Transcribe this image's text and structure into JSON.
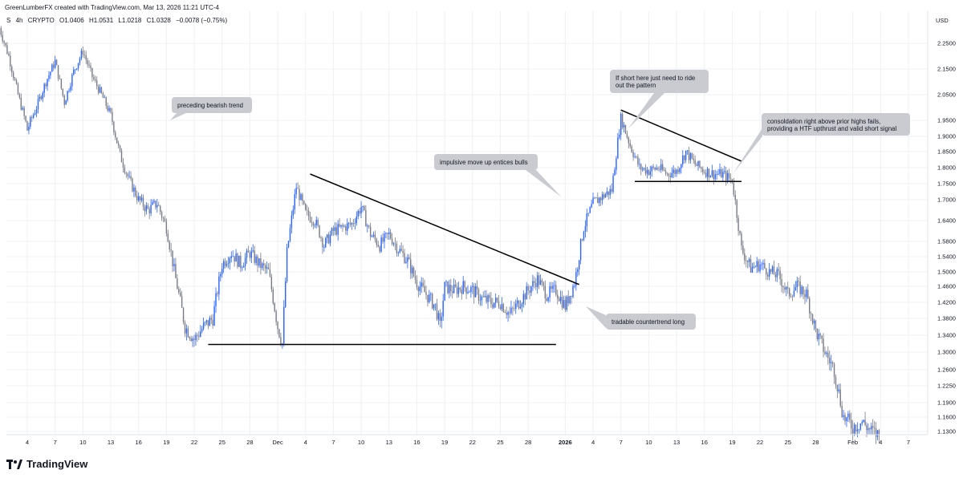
{
  "header": {
    "attribution": "GreenLumberFX created with TradingView.com, Mar 13, 2026 11:21 UTC-4",
    "symbol": "S",
    "interval": "4h",
    "exchange": "CRYPTO",
    "open": "O1.0406",
    "high": "H1.0531",
    "low": "L1.0218",
    "close": "C1.0328",
    "change": "−0.0078 (−0.75%)"
  },
  "currency_label": "USD",
  "brand": "TradingView",
  "colors": {
    "up": "#2962ff",
    "down": "#787b86",
    "line": "#000000",
    "bubble": "#c9cbd1",
    "axis_text": "#131722",
    "grid": "#eef0f3"
  },
  "chart_data": {
    "type": "candlestick",
    "ylim": [
      1.11,
      2.32
    ],
    "y_ticks": [
      "2.2500",
      "2.1500",
      "2.0500",
      "1.9500",
      "1.9000",
      "1.8500",
      "1.8000",
      "1.7500",
      "1.7000",
      "1.6400",
      "1.5800",
      "1.5400",
      "1.5000",
      "1.4600",
      "1.4200",
      "1.3800",
      "1.3400",
      "1.3000",
      "1.2600",
      "1.2250",
      "1.1900",
      "1.1600",
      "1.1300"
    ],
    "y_tick_values": [
      2.25,
      2.15,
      2.05,
      1.95,
      1.9,
      1.85,
      1.8,
      1.75,
      1.7,
      1.64,
      1.58,
      1.54,
      1.5,
      1.46,
      1.42,
      1.38,
      1.34,
      1.3,
      1.26,
      1.225,
      1.19,
      1.16,
      1.13
    ],
    "x_ticks": [
      {
        "label": "4",
        "day": 4
      },
      {
        "label": "7",
        "day": 7
      },
      {
        "label": "10",
        "day": 10
      },
      {
        "label": "13",
        "day": 13
      },
      {
        "label": "16",
        "day": 16
      },
      {
        "label": "19",
        "day": 19
      },
      {
        "label": "22",
        "day": 22
      },
      {
        "label": "25",
        "day": 25
      },
      {
        "label": "28",
        "day": 28
      },
      {
        "label": "Dec",
        "day": 31
      },
      {
        "label": "4",
        "day": 34
      },
      {
        "label": "7",
        "day": 37
      },
      {
        "label": "10",
        "day": 40
      },
      {
        "label": "13",
        "day": 43
      },
      {
        "label": "16",
        "day": 46
      },
      {
        "label": "19",
        "day": 49
      },
      {
        "label": "22",
        "day": 52
      },
      {
        "label": "25",
        "day": 55
      },
      {
        "label": "28",
        "day": 58
      },
      {
        "label": "2026",
        "day": 62
      },
      {
        "label": "4",
        "day": 65
      },
      {
        "label": "7",
        "day": 68
      },
      {
        "label": "10",
        "day": 71
      },
      {
        "label": "13",
        "day": 74
      },
      {
        "label": "16",
        "day": 77
      },
      {
        "label": "19",
        "day": 80
      },
      {
        "label": "22",
        "day": 83
      },
      {
        "label": "25",
        "day": 86
      },
      {
        "label": "28",
        "day": 89
      },
      {
        "label": "Feb",
        "day": 93
      },
      {
        "label": "4",
        "day": 96
      },
      {
        "label": "7",
        "day": 99
      }
    ],
    "xlim": [
      1,
      103
    ],
    "price_path": [
      [
        1,
        2.31
      ],
      [
        2,
        2.2
      ],
      [
        3,
        2.05
      ],
      [
        4,
        1.92
      ],
      [
        5,
        2.0
      ],
      [
        6,
        2.1
      ],
      [
        7,
        2.18
      ],
      [
        8,
        2.02
      ],
      [
        9,
        2.14
      ],
      [
        10,
        2.22
      ],
      [
        11,
        2.12
      ],
      [
        12,
        2.05
      ],
      [
        13,
        1.97
      ],
      [
        14,
        1.84
      ],
      [
        15,
        1.76
      ],
      [
        16,
        1.7
      ],
      [
        17,
        1.67
      ],
      [
        18,
        1.69
      ],
      [
        19,
        1.62
      ],
      [
        20,
        1.48
      ],
      [
        21,
        1.36
      ],
      [
        22,
        1.33
      ],
      [
        23,
        1.36
      ],
      [
        24,
        1.38
      ],
      [
        25,
        1.52
      ],
      [
        26,
        1.55
      ],
      [
        27,
        1.52
      ],
      [
        28,
        1.55
      ],
      [
        29,
        1.52
      ],
      [
        30,
        1.5
      ],
      [
        31,
        1.36
      ],
      [
        31.5,
        1.32
      ],
      [
        32,
        1.55
      ],
      [
        33,
        1.74
      ],
      [
        34,
        1.66
      ],
      [
        35,
        1.64
      ],
      [
        36,
        1.57
      ],
      [
        37,
        1.61
      ],
      [
        38,
        1.62
      ],
      [
        39,
        1.63
      ],
      [
        40,
        1.68
      ],
      [
        41,
        1.6
      ],
      [
        42,
        1.57
      ],
      [
        43,
        1.6
      ],
      [
        44,
        1.56
      ],
      [
        45,
        1.53
      ],
      [
        46,
        1.47
      ],
      [
        47,
        1.44
      ],
      [
        48,
        1.41
      ],
      [
        48.5,
        1.36
      ],
      [
        49,
        1.46
      ],
      [
        50,
        1.45
      ],
      [
        51,
        1.46
      ],
      [
        52,
        1.45
      ],
      [
        53,
        1.43
      ],
      [
        54,
        1.42
      ],
      [
        55,
        1.42
      ],
      [
        56,
        1.39
      ],
      [
        57,
        1.42
      ],
      [
        58,
        1.45
      ],
      [
        59,
        1.48
      ],
      [
        60,
        1.44
      ],
      [
        61,
        1.45
      ],
      [
        62,
        1.41
      ],
      [
        63,
        1.47
      ],
      [
        64,
        1.62
      ],
      [
        65,
        1.69
      ],
      [
        66,
        1.71
      ],
      [
        67,
        1.73
      ],
      [
        68,
        1.96
      ],
      [
        69,
        1.87
      ],
      [
        70,
        1.8
      ],
      [
        71,
        1.79
      ],
      [
        72,
        1.8
      ],
      [
        73,
        1.78
      ],
      [
        74,
        1.79
      ],
      [
        75,
        1.85
      ],
      [
        76,
        1.81
      ],
      [
        77,
        1.79
      ],
      [
        78,
        1.78
      ],
      [
        79,
        1.78
      ],
      [
        80,
        1.76
      ],
      [
        81,
        1.56
      ],
      [
        82,
        1.51
      ],
      [
        83,
        1.52
      ],
      [
        84,
        1.5
      ],
      [
        85,
        1.49
      ],
      [
        86,
        1.44
      ],
      [
        87,
        1.46
      ],
      [
        88,
        1.44
      ],
      [
        89,
        1.35
      ],
      [
        90,
        1.3
      ],
      [
        91,
        1.26
      ],
      [
        92,
        1.16
      ],
      [
        93,
        1.14
      ],
      [
        94,
        1.15
      ],
      [
        95,
        1.13
      ],
      [
        96,
        1.12
      ]
    ],
    "lines": [
      {
        "name": "support-left",
        "from": [
          23.5,
          1.318
        ],
        "to": [
          61,
          1.318
        ]
      },
      {
        "name": "trendline-descending",
        "from": [
          34.5,
          1.78
        ],
        "to": [
          63.5,
          1.465
        ]
      },
      {
        "name": "trendline-consolidation",
        "from": [
          68,
          1.99
        ],
        "to": [
          81,
          1.82
        ]
      },
      {
        "name": "support-consolidation",
        "from": [
          69.5,
          1.757
        ],
        "to": [
          81,
          1.757
        ]
      }
    ],
    "annotations": [
      {
        "id": "preceding",
        "text": [
          "preceding bearish trend"
        ]
      },
      {
        "id": "impulsive",
        "text": [
          "impulsive move up entices bulls"
        ]
      },
      {
        "id": "short",
        "text": [
          "If short here just need to ride",
          "out the pattern"
        ]
      },
      {
        "id": "consolidation",
        "text": [
          "consoldation right above prior highs fails,",
          "providing a HTF upthrust and valid short signal"
        ]
      },
      {
        "id": "countertrend",
        "text": [
          "tradable countertrend long"
        ]
      }
    ]
  }
}
